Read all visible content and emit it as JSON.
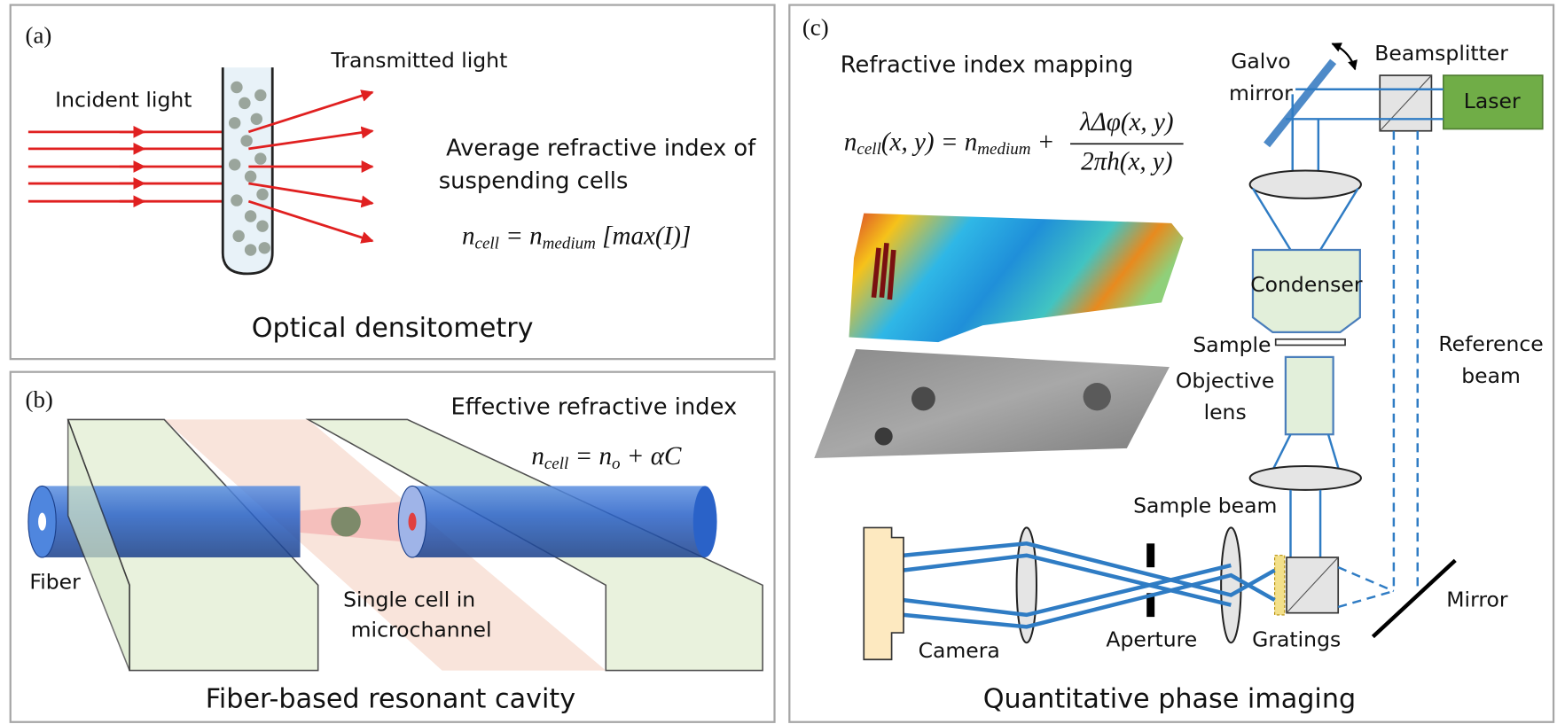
{
  "panel_a": {
    "label": "(a)",
    "transmitted": "Transmitted light",
    "incident": "Incident light",
    "desc_line1": "Average refractive index of",
    "desc_line2": "suspending cells",
    "formula": [
      {
        "t": "n"
      },
      {
        "sub": "cell"
      },
      {
        "t": " = n"
      },
      {
        "sub": "medium"
      },
      {
        "t": " [max(I)]"
      }
    ],
    "caption": "Optical densitometry"
  },
  "panel_b": {
    "label": "(b)",
    "heading": "Effective refractive index",
    "formula": [
      {
        "t": "n"
      },
      {
        "sub": "cell"
      },
      {
        "t": " = n"
      },
      {
        "sub": "o"
      },
      {
        "t": " + αC"
      }
    ],
    "fiber": "Fiber",
    "cell_line1": "Single cell in",
    "cell_line2": "microchannel",
    "caption": "Fiber-based resonant cavity"
  },
  "panel_c": {
    "label": "(c)",
    "heading": "Refractive index mapping",
    "formula_lhs": [
      {
        "t": "n"
      },
      {
        "sub": "cell"
      },
      {
        "t": "(x, y) = n"
      },
      {
        "sub": "medium"
      },
      {
        "t": " +"
      }
    ],
    "formula_num": [
      {
        "t": "λΔφ(x, y)"
      }
    ],
    "formula_den": [
      {
        "t": "2πh(x, y)"
      }
    ],
    "galvo_line1": "Galvo",
    "galvo_line2": "mirror",
    "beamsplitter": "Beamsplitter",
    "laser": "Laser",
    "condenser": "Condenser",
    "sample": "Sample",
    "objective_line1": "Objective",
    "objective_line2": "lens",
    "reference_line1": "Reference",
    "reference_line2": "beam",
    "sample_beam": "Sample beam",
    "mirror": "Mirror",
    "camera": "Camera",
    "aperture": "Aperture",
    "gratings": "Gratings",
    "caption": "Quantitative phase imaging"
  }
}
